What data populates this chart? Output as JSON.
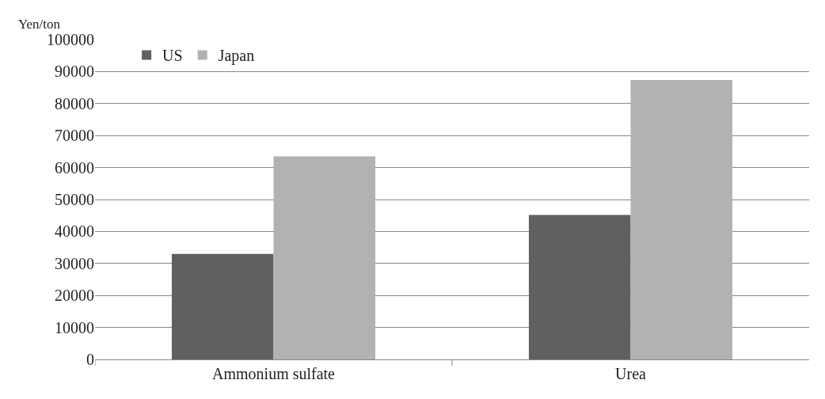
{
  "chart_data": {
    "type": "bar",
    "ylabel": "Yen/ton",
    "categories": [
      "Ammonium sulfate",
      "Urea"
    ],
    "series": [
      {
        "name": "US",
        "color": "#606060",
        "values": [
          33000,
          45200
        ]
      },
      {
        "name": "Japan",
        "color": "#b2b2b2",
        "values": [
          63500,
          87400
        ]
      }
    ],
    "ylim": [
      0,
      100000
    ],
    "yticks": [
      0,
      10000,
      20000,
      30000,
      40000,
      50000,
      60000,
      70000,
      80000,
      90000,
      100000
    ],
    "grid": "y",
    "legend": "top left"
  }
}
